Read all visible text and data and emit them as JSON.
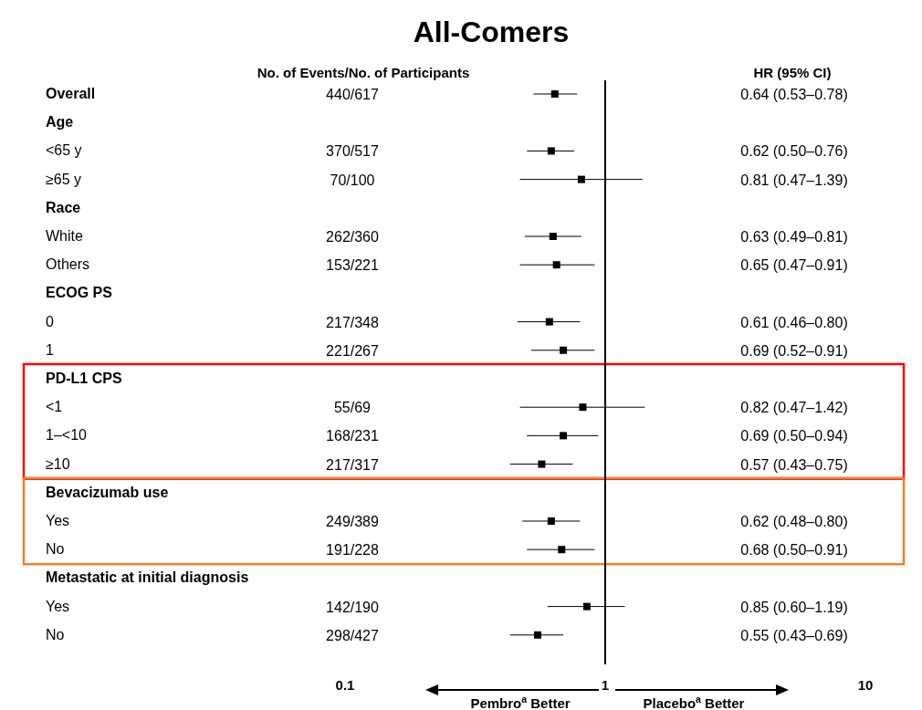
{
  "chart_data": {
    "type": "scatter",
    "orientation": "horizontal",
    "title": "All-Comers",
    "categories": [
      "Overall",
      "Age",
      "<65 y",
      "≥65 y",
      "Race",
      "White",
      "Others",
      "ECOG PS",
      "0",
      "1",
      "PD-L1 CPS",
      "<1",
      "1–<10",
      "≥10",
      "Bevacizumab use",
      "Yes",
      "No",
      "Metastatic at initial diagnosis",
      "Yes",
      "No"
    ],
    "values": [
      0.64,
      null,
      0.62,
      0.81,
      null,
      0.63,
      0.65,
      null,
      0.61,
      0.69,
      null,
      0.82,
      0.69,
      0.57,
      null,
      0.62,
      0.68,
      null,
      0.85,
      0.55
    ],
    "errors": [
      [
        0.53,
        0.78
      ],
      null,
      [
        0.5,
        0.76
      ],
      [
        0.47,
        1.39
      ],
      null,
      [
        0.49,
        0.81
      ],
      [
        0.47,
        0.91
      ],
      null,
      [
        0.46,
        0.8
      ],
      [
        0.52,
        0.91
      ],
      null,
      [
        0.47,
        1.42
      ],
      [
        0.5,
        0.94
      ],
      [
        0.43,
        0.75
      ],
      null,
      [
        0.48,
        0.8
      ],
      [
        0.5,
        0.91
      ],
      null,
      [
        0.6,
        1.19
      ],
      [
        0.43,
        0.69
      ]
    ],
    "annotations": [
      "No. of Events/No. of Participants",
      "HR (95% CI)",
      "Pembro$^{a}$ Better",
      "Placebo$^{a}$ Better",
      "440/617",
      "370/517",
      "70/100",
      "262/360",
      "153/221",
      "217/348",
      "221/267",
      "55/69",
      "168/231",
      "217/317",
      "249/389",
      "191/228",
      "142/190",
      "298/427",
      "0.64 (0.53–0.78)",
      "0.62 (0.50–0.76)",
      "0.81 (0.47–1.39)",
      "0.63 (0.49–0.81)",
      "0.65 (0.47–0.91)",
      "0.61 (0.46–0.80)",
      "0.69 (0.52–0.91)",
      "0.82 (0.47–1.42)",
      "0.69 (0.50–0.94)",
      "0.57 (0.43–0.75)",
      "0.62 (0.48–0.80)",
      "0.68 (0.50–0.91)",
      "0.85 (0.60–1.19)",
      "0.55 (0.43–0.69)"
    ],
    "color": "#000000",
    "marker": "square",
    "log": "x",
    "xlim": [
      0.1,
      10
    ],
    "xticks": [
      0.1,
      1,
      10
    ],
    "ref_lines": [
      {
        "axis": "x",
        "value": 1,
        "color": "#000000"
      }
    ]
  }
}
